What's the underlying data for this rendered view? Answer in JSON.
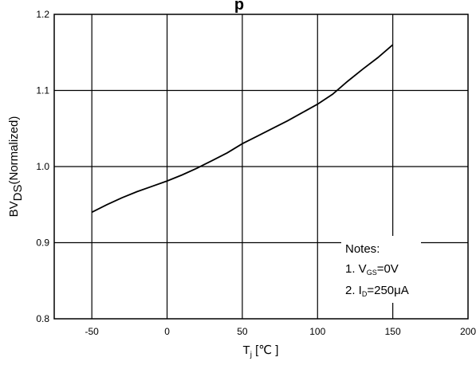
{
  "chart_data": {
    "type": "line",
    "title_fragment": "p",
    "xlabel": {
      "main": "T",
      "sub": "j",
      "unit": " [℃ ]"
    },
    "ylabel": {
      "main": "BV",
      "sub": "DS",
      "suffix": "(Normalized)"
    },
    "xlim": [
      -75,
      200
    ],
    "ylim": [
      0.8,
      1.2
    ],
    "x_ticks": [
      -50,
      0,
      50,
      100,
      150,
      200
    ],
    "x_tick_labels": [
      "-50",
      "0",
      "50",
      "100",
      "150",
      "200"
    ],
    "y_ticks": [
      0.8,
      0.9,
      1.0,
      1.1,
      1.2
    ],
    "y_tick_labels": [
      "0.8",
      "0.9",
      "1.0",
      "1.1",
      "1.2"
    ],
    "grid": true,
    "series": [
      {
        "x": [
          -50,
          -40,
          -30,
          -20,
          -10,
          0,
          10,
          20,
          30,
          40,
          50,
          60,
          70,
          80,
          90,
          100,
          110,
          120,
          130,
          140,
          150
        ],
        "y": [
          0.94,
          0.95,
          0.959,
          0.967,
          0.974,
          0.981,
          0.989,
          0.998,
          1.008,
          1.018,
          1.03,
          1.04,
          1.05,
          1.06,
          1.071,
          1.082,
          1.095,
          1.112,
          1.128,
          1.143,
          1.16
        ]
      }
    ],
    "notes": {
      "heading": "Notes",
      "line1": {
        "prefix": "1. V",
        "sub": "GS",
        "suffix": "=0V"
      },
      "line2": {
        "prefix": "2. I",
        "sub": "D",
        "suffix": "=250μA"
      }
    }
  },
  "colors": {
    "line": "#000000",
    "grid": "#000000",
    "background": "#ffffff"
  }
}
